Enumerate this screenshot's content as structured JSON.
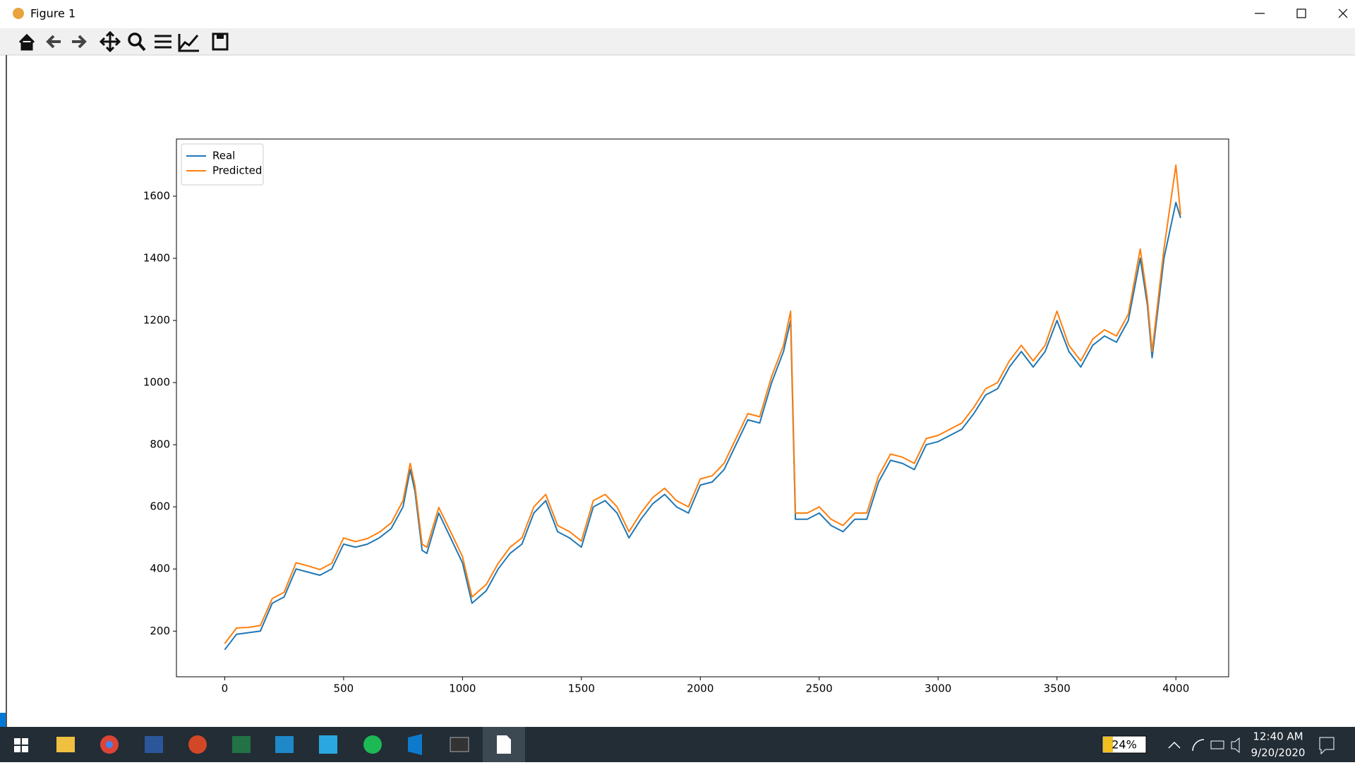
{
  "window": {
    "title": "Figure 1"
  },
  "chart_data": {
    "type": "line",
    "x": [
      0,
      50,
      100,
      150,
      200,
      250,
      300,
      350,
      400,
      450,
      500,
      550,
      600,
      650,
      700,
      750,
      780,
      800,
      830,
      850,
      900,
      950,
      1000,
      1040,
      1100,
      1150,
      1200,
      1250,
      1300,
      1350,
      1400,
      1450,
      1500,
      1550,
      1600,
      1650,
      1700,
      1750,
      1800,
      1850,
      1900,
      1950,
      2000,
      2050,
      2100,
      2150,
      2200,
      2250,
      2300,
      2350,
      2380,
      2400,
      2450,
      2500,
      2550,
      2600,
      2650,
      2700,
      2750,
      2800,
      2850,
      2900,
      2950,
      3000,
      3050,
      3100,
      3150,
      3200,
      3250,
      3300,
      3350,
      3400,
      3450,
      3500,
      3550,
      3600,
      3650,
      3700,
      3750,
      3800,
      3850,
      3880,
      3900,
      3950,
      4000,
      4020
    ],
    "series": [
      {
        "name": "Real",
        "color": "#1f77b4",
        "values": [
          140,
          190,
          195,
          200,
          290,
          310,
          400,
          390,
          380,
          400,
          480,
          470,
          480,
          500,
          530,
          600,
          720,
          650,
          460,
          450,
          580,
          500,
          420,
          290,
          330,
          400,
          450,
          480,
          580,
          620,
          520,
          500,
          470,
          600,
          620,
          580,
          500,
          560,
          610,
          640,
          600,
          580,
          670,
          680,
          720,
          800,
          880,
          870,
          1000,
          1100,
          1200,
          560,
          560,
          580,
          540,
          520,
          560,
          560,
          680,
          750,
          740,
          720,
          800,
          810,
          830,
          850,
          900,
          960,
          980,
          1050,
          1100,
          1050,
          1100,
          1200,
          1100,
          1050,
          1120,
          1150,
          1130,
          1200,
          1400,
          1250,
          1080,
          1400,
          1580,
          1530
        ]
      },
      {
        "name": "Predicted",
        "color": "#ff7f0e",
        "values": [
          160,
          210,
          212,
          218,
          305,
          325,
          420,
          410,
          398,
          418,
          500,
          488,
          498,
          518,
          548,
          620,
          740,
          668,
          480,
          470,
          598,
          520,
          440,
          310,
          350,
          418,
          470,
          500,
          600,
          640,
          540,
          520,
          490,
          620,
          640,
          600,
          520,
          580,
          630,
          660,
          620,
          600,
          690,
          700,
          740,
          820,
          900,
          890,
          1020,
          1120,
          1230,
          580,
          580,
          600,
          560,
          540,
          580,
          580,
          700,
          770,
          760,
          740,
          820,
          830,
          850,
          870,
          920,
          980,
          1000,
          1070,
          1120,
          1070,
          1120,
          1230,
          1120,
          1070,
          1140,
          1170,
          1150,
          1220,
          1430,
          1270,
          1100,
          1430,
          1700,
          1540
        ]
      }
    ],
    "xlim": [
      -203,
      4222
    ],
    "ylim": [
      53,
      1784
    ],
    "xticks": [
      0,
      500,
      1000,
      1500,
      2000,
      2500,
      3000,
      3500,
      4000
    ],
    "yticks": [
      200,
      400,
      600,
      800,
      1000,
      1200,
      1400,
      1600
    ],
    "legend": "upper left",
    "grid": false
  },
  "taskbar": {
    "battery": "24%",
    "time": "12:40 AM",
    "date": "9/20/2020"
  }
}
